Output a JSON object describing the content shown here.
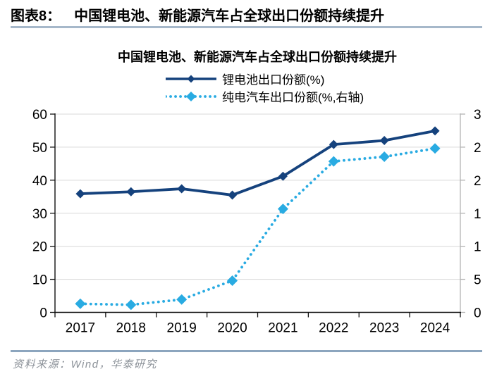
{
  "header": {
    "label": "图表8：",
    "title": "中国锂电池、新能源汽车占全球出口份额持续提升",
    "rule_color": "#A6B8CA"
  },
  "footer": {
    "source": "资料来源：Wind，华泰研究",
    "rule_color": "#8CA5BE"
  },
  "chart_data": {
    "type": "line",
    "title": "中国锂电池、新能源汽车占全球出口份额持续提升",
    "categories": [
      "2017",
      "2018",
      "2019",
      "2020",
      "2021",
      "2022",
      "2023",
      "2024"
    ],
    "left_axis": {
      "min": 0,
      "max": 60,
      "tick_step": 10,
      "tick_labels": [
        "0",
        "10",
        "20",
        "30",
        "40",
        "50",
        "60"
      ]
    },
    "right_axis": {
      "tick_labels_top_to_bottom": [
        "3",
        "2",
        "2",
        "1",
        "1",
        "5",
        "0"
      ]
    },
    "series": [
      {
        "name": "锂电池出口份额(%)",
        "axis": "left",
        "line_style": "solid",
        "marker": "diamond",
        "color": "#15427D",
        "values": [
          35.9,
          36.5,
          37.4,
          35.5,
          41.2,
          50.8,
          52.0,
          54.9
        ]
      },
      {
        "name": "纯电汽车出口份额(%,右轴)",
        "axis": "right",
        "line_style": "dotted",
        "marker": "diamond",
        "color": "#29ABE2",
        "values_right_axis_scale": [
          0.13,
          0.12,
          0.2,
          0.48,
          1.56,
          2.28,
          2.36,
          2.48
        ],
        "plot_values_left_axis_scale": [
          2.6,
          2.3,
          3.9,
          9.6,
          31.3,
          45.7,
          47.1,
          49.6
        ]
      }
    ],
    "grid": "horizontal",
    "legend_position": "top-center"
  }
}
